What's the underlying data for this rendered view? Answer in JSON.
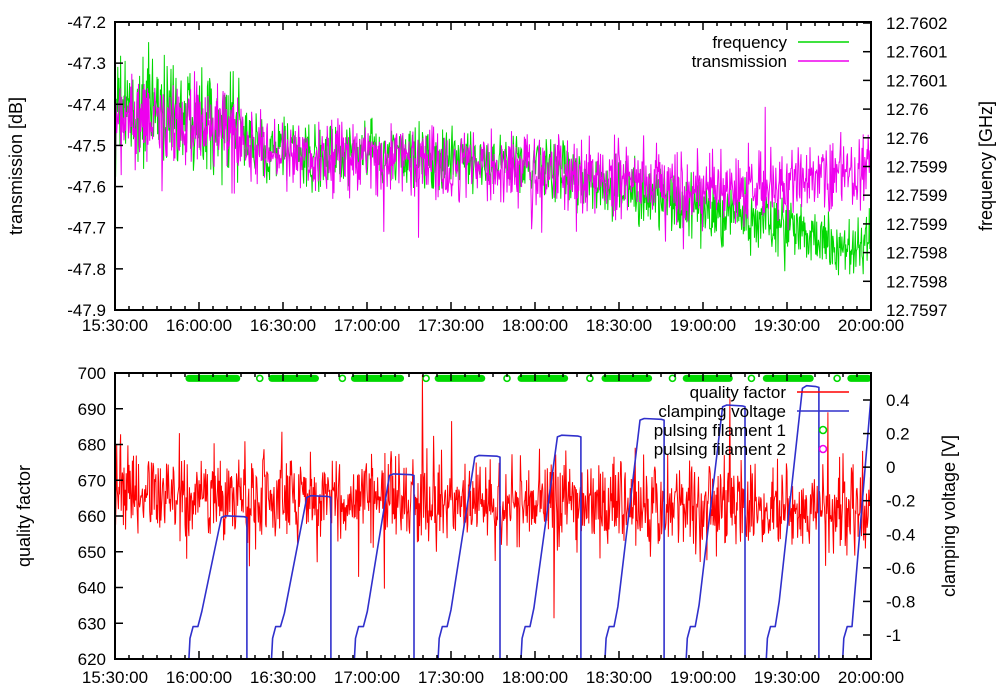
{
  "figure": {
    "background": "#ffffff"
  },
  "colors": {
    "green": "#00d800",
    "magenta": "#ee00ee",
    "red": "#ff0000",
    "blue": "#3030cc",
    "axis": "#000000"
  },
  "chart_data": [
    {
      "type": "line",
      "id": "transmission-frequency-chart",
      "x": {
        "tick_labels": [
          "15:30:00",
          "16:00:00",
          "16:30:00",
          "17:00:00",
          "17:30:00",
          "18:00:00",
          "18:30:00",
          "19:00:00",
          "19:30:00",
          "20:00:00"
        ],
        "major_step_min": 30,
        "minor_step_min": 5,
        "range_min": [
          0,
          270
        ]
      },
      "y_left": {
        "label": "transmission [dB]",
        "tick_labels": [
          "-47.2",
          "-47.3",
          "-47.4",
          "-47.5",
          "-47.6",
          "-47.7",
          "-47.8",
          "-47.9"
        ],
        "range": [
          -47.9,
          -47.2
        ]
      },
      "y_right": {
        "label": "frequency [GHz]",
        "tick_labels": [
          "12.7602",
          "12.7601",
          "12.7601",
          "12.76",
          "12.76",
          "12.7599",
          "12.7599",
          "12.7599",
          "12.7598",
          "12.7598",
          "12.7597"
        ],
        "top_value": 12.7602,
        "tick_step": 5e-05
      },
      "legend": [
        {
          "label": "frequency",
          "color_key": "green",
          "sample": "line"
        },
        {
          "label": "transmission",
          "color_key": "magenta",
          "sample": "line"
        }
      ],
      "series": [
        {
          "name": "frequency",
          "axis": "right",
          "kind": "noisy",
          "color_key": "green",
          "noise_sigma": 2.7e-05,
          "early_boost": {
            "until_min": 45,
            "factor": 1.7
          },
          "spike": {
            "prob": 0.012,
            "min": 3e-05,
            "max": 7e-05,
            "down_frac": 0.75
          },
          "trend": [
            [
              0,
              12.76004
            ],
            [
              15,
              12.76005
            ],
            [
              35,
              12.76004
            ],
            [
              45,
              12.76
            ],
            [
              55,
              12.75998
            ],
            [
              70,
              12.75997
            ],
            [
              95,
              12.75997
            ],
            [
              120,
              12.75996
            ],
            [
              140,
              12.75996
            ],
            [
              160,
              12.75994
            ],
            [
              175,
              12.75992
            ],
            [
              190,
              12.7599
            ],
            [
              205,
              12.75988
            ],
            [
              225,
              12.75986
            ],
            [
              245,
              12.75984
            ],
            [
              255,
              12.75982
            ],
            [
              262,
              12.7598
            ],
            [
              270,
              12.75983
            ]
          ]
        },
        {
          "name": "transmission",
          "axis": "left",
          "kind": "noisy",
          "color_key": "magenta",
          "noise_sigma": 0.043,
          "early_boost": {
            "until_min": 45,
            "factor": 1.25
          },
          "spike": {
            "prob": 0.016,
            "min": 0.05,
            "max": 0.17,
            "down_frac": 0.72
          },
          "trend": [
            [
              0,
              -47.45
            ],
            [
              20,
              -47.45
            ],
            [
              40,
              -47.48
            ],
            [
              55,
              -47.51
            ],
            [
              75,
              -47.53
            ],
            [
              105,
              -47.53
            ],
            [
              135,
              -47.55
            ],
            [
              165,
              -47.57
            ],
            [
              190,
              -47.59
            ],
            [
              215,
              -47.61
            ],
            [
              235,
              -47.6
            ],
            [
              255,
              -47.58
            ],
            [
              270,
              -47.56
            ]
          ]
        }
      ]
    },
    {
      "type": "line",
      "id": "qualityfactor-clamping-chart",
      "x": {
        "tick_labels": [
          "15:30:00",
          "16:00:00",
          "16:30:00",
          "17:00:00",
          "17:30:00",
          "18:00:00",
          "18:30:00",
          "19:00:00",
          "19:30:00",
          "20:00:00"
        ],
        "major_step_min": 30,
        "minor_step_min": 5,
        "range_min": [
          0,
          270
        ]
      },
      "y_left": {
        "label": "quality factor",
        "tick_labels": [
          "700",
          "690",
          "680",
          "670",
          "660",
          "650",
          "640",
          "630",
          "620"
        ],
        "range": [
          620,
          700
        ]
      },
      "y_right": {
        "label": "clamping voltage [V]",
        "tick_labels": [
          "0.4",
          "0.2",
          "0",
          "-0.2",
          "-0.4",
          "-0.6",
          "-0.8",
          "-1"
        ],
        "top_value": 0.4,
        "tick_step": 0.2
      },
      "legend": [
        {
          "label": "quality factor",
          "color_key": "red",
          "sample": "line"
        },
        {
          "label": "clamping voltage",
          "color_key": "blue",
          "sample": "line"
        },
        {
          "label": "pulsing filament 1",
          "color_key": "green",
          "sample": "circle"
        },
        {
          "label": "pulsing filament 2",
          "color_key": "magenta",
          "sample": "circle"
        }
      ],
      "series": [
        {
          "name": "quality factor",
          "axis": "left",
          "kind": "noisy",
          "color_key": "red",
          "noise_sigma": 5.8,
          "early_boost": {
            "until_min": 0,
            "factor": 1
          },
          "spike": {
            "prob": 0.015,
            "min": 10,
            "max": 30,
            "down_frac": 0.5
          },
          "trend": [
            [
              0,
              667
            ],
            [
              40,
              666
            ],
            [
              80,
              665
            ],
            [
              120,
              664
            ],
            [
              170,
              663.5
            ],
            [
              220,
              662.5
            ],
            [
              270,
              662
            ]
          ]
        },
        {
          "name": "clamping voltage",
          "axis": "right",
          "kind": "cycles",
          "color_key": "blue",
          "cycles_points_min_v": [
            [
              [
                26.4,
                -1.15
              ],
              [
                26.8,
                -1.02
              ],
              [
                27.9,
                -0.95
              ],
              [
                29.6,
                -0.95
              ],
              [
                31,
                -0.86
              ],
              [
                38,
                -0.3
              ],
              [
                39.5,
                -0.29
              ],
              [
                46.1,
                -0.295
              ],
              [
                47.1,
                -0.3
              ],
              [
                47.1,
                -1.15
              ]
            ],
            [
              [
                55.9,
                -1.15
              ],
              [
                56.3,
                -1.02
              ],
              [
                57.4,
                -0.95
              ],
              [
                59.1,
                -0.95
              ],
              [
                60.5,
                -0.87
              ],
              [
                68.5,
                -0.18
              ],
              [
                70,
                -0.17
              ],
              [
                76.1,
                -0.175
              ],
              [
                77.1,
                -0.18
              ],
              [
                77.1,
                -1.15
              ]
            ],
            [
              [
                85.5,
                -1.15
              ],
              [
                85.9,
                -1.02
              ],
              [
                87,
                -0.95
              ],
              [
                88.7,
                -0.95
              ],
              [
                90.1,
                -0.86
              ],
              [
                98,
                -0.05
              ],
              [
                99.5,
                -0.04
              ],
              [
                105.8,
                -0.045
              ],
              [
                106.8,
                -0.05
              ],
              [
                106.8,
                -1.15
              ]
            ],
            [
              [
                115.4,
                -1.15
              ],
              [
                115.8,
                -1.02
              ],
              [
                116.9,
                -0.95
              ],
              [
                118.6,
                -0.95
              ],
              [
                120,
                -0.85
              ],
              [
                128.5,
                0.06
              ],
              [
                130,
                0.07
              ],
              [
                136.5,
                0.065
              ],
              [
                137.5,
                0.06
              ],
              [
                137.5,
                -1.15
              ]
            ],
            [
              [
                145,
                -1.15
              ],
              [
                145.4,
                -1.02
              ],
              [
                146.5,
                -0.95
              ],
              [
                148.2,
                -0.95
              ],
              [
                149.6,
                -0.84
              ],
              [
                158,
                0.18
              ],
              [
                159.5,
                0.19
              ],
              [
                165.4,
                0.185
              ],
              [
                166.4,
                0.18
              ],
              [
                166.4,
                -1.15
              ]
            ],
            [
              [
                175,
                -1.15
              ],
              [
                175.4,
                -1.02
              ],
              [
                176.5,
                -0.95
              ],
              [
                178.2,
                -0.95
              ],
              [
                179.6,
                -0.83
              ],
              [
                187.5,
                0.28
              ],
              [
                189,
                0.29
              ],
              [
                195.1,
                0.285
              ],
              [
                196.1,
                0.28
              ],
              [
                196.1,
                -1.15
              ]
            ],
            [
              [
                204,
                -1.15
              ],
              [
                204.4,
                -1.02
              ],
              [
                205.5,
                -0.95
              ],
              [
                207.2,
                -0.95
              ],
              [
                208.6,
                -0.82
              ],
              [
                217,
                0.36
              ],
              [
                218.5,
                0.37
              ],
              [
                224,
                0.365
              ],
              [
                225,
                0.36
              ],
              [
                225,
                -1.15
              ]
            ],
            [
              [
                232.6,
                -1.15
              ],
              [
                233,
                -1.02
              ],
              [
                234.1,
                -0.95
              ],
              [
                235.8,
                -0.95
              ],
              [
                237.2,
                -0.8
              ],
              [
                245.5,
                0.47
              ],
              [
                247,
                0.485
              ],
              [
                250.4,
                0.48
              ],
              [
                251.4,
                0.475
              ],
              [
                251.4,
                -1.15
              ]
            ],
            [
              [
                259.9,
                -1.15
              ],
              [
                260.3,
                -1.02
              ],
              [
                261.5,
                -0.95
              ],
              [
                263.2,
                -0.95
              ],
              [
                270,
                0.42
              ]
            ]
          ]
        },
        {
          "name": "pulsing filament 1",
          "axis": "left",
          "kind": "markers",
          "color_key": "green",
          "level": 698.5,
          "dashes_min": [
            [
              26.4,
              43.5
            ],
            [
              56,
              71.6
            ],
            [
              85.5,
              102
            ],
            [
              115.4,
              131
            ],
            [
              145,
              160.6
            ],
            [
              175,
              190.6
            ],
            [
              204,
              219.4
            ],
            [
              232.6,
              248.3
            ],
            [
              262.8,
              270
            ]
          ],
          "circles_min": [
            51.7,
            81.2,
            111.1,
            140,
            169.6,
            199.1,
            227.3,
            257.9
          ]
        },
        {
          "name": "pulsing filament 2",
          "axis": "left",
          "kind": "markers",
          "color_key": "magenta",
          "level": null,
          "dashes_min": [],
          "circles_min": []
        }
      ]
    }
  ]
}
